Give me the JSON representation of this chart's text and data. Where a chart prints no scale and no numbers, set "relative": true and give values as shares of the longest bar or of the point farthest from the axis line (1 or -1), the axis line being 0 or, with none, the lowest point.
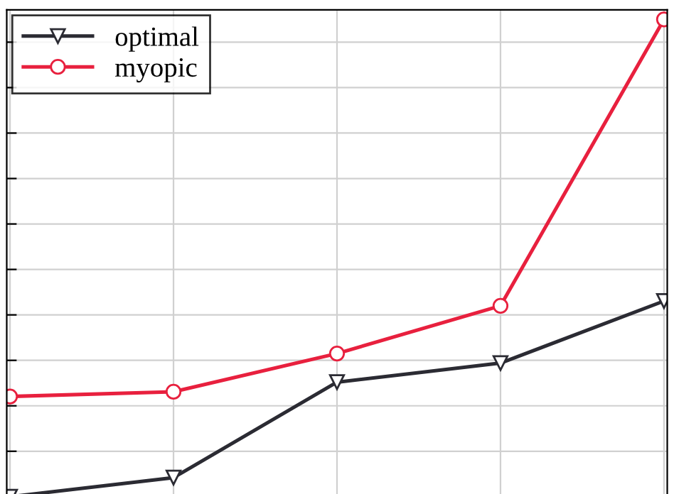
{
  "chart_data": {
    "type": "line",
    "relative": true,
    "categories": [
      null,
      null,
      null,
      null,
      null
    ],
    "series": [
      {
        "name": "optimal",
        "color": "#2b2b33",
        "values": [
          0,
          0.04,
          0.24,
          0.28,
          0.41
        ],
        "marker": "triangle"
      },
      {
        "name": "myopic",
        "color": "#e8203e",
        "values": [
          0.21,
          0.22,
          0.3,
          0.4,
          1
        ],
        "marker": "circle"
      }
    ],
    "grid": true,
    "legend": "top left",
    "line_style": "solid"
  }
}
